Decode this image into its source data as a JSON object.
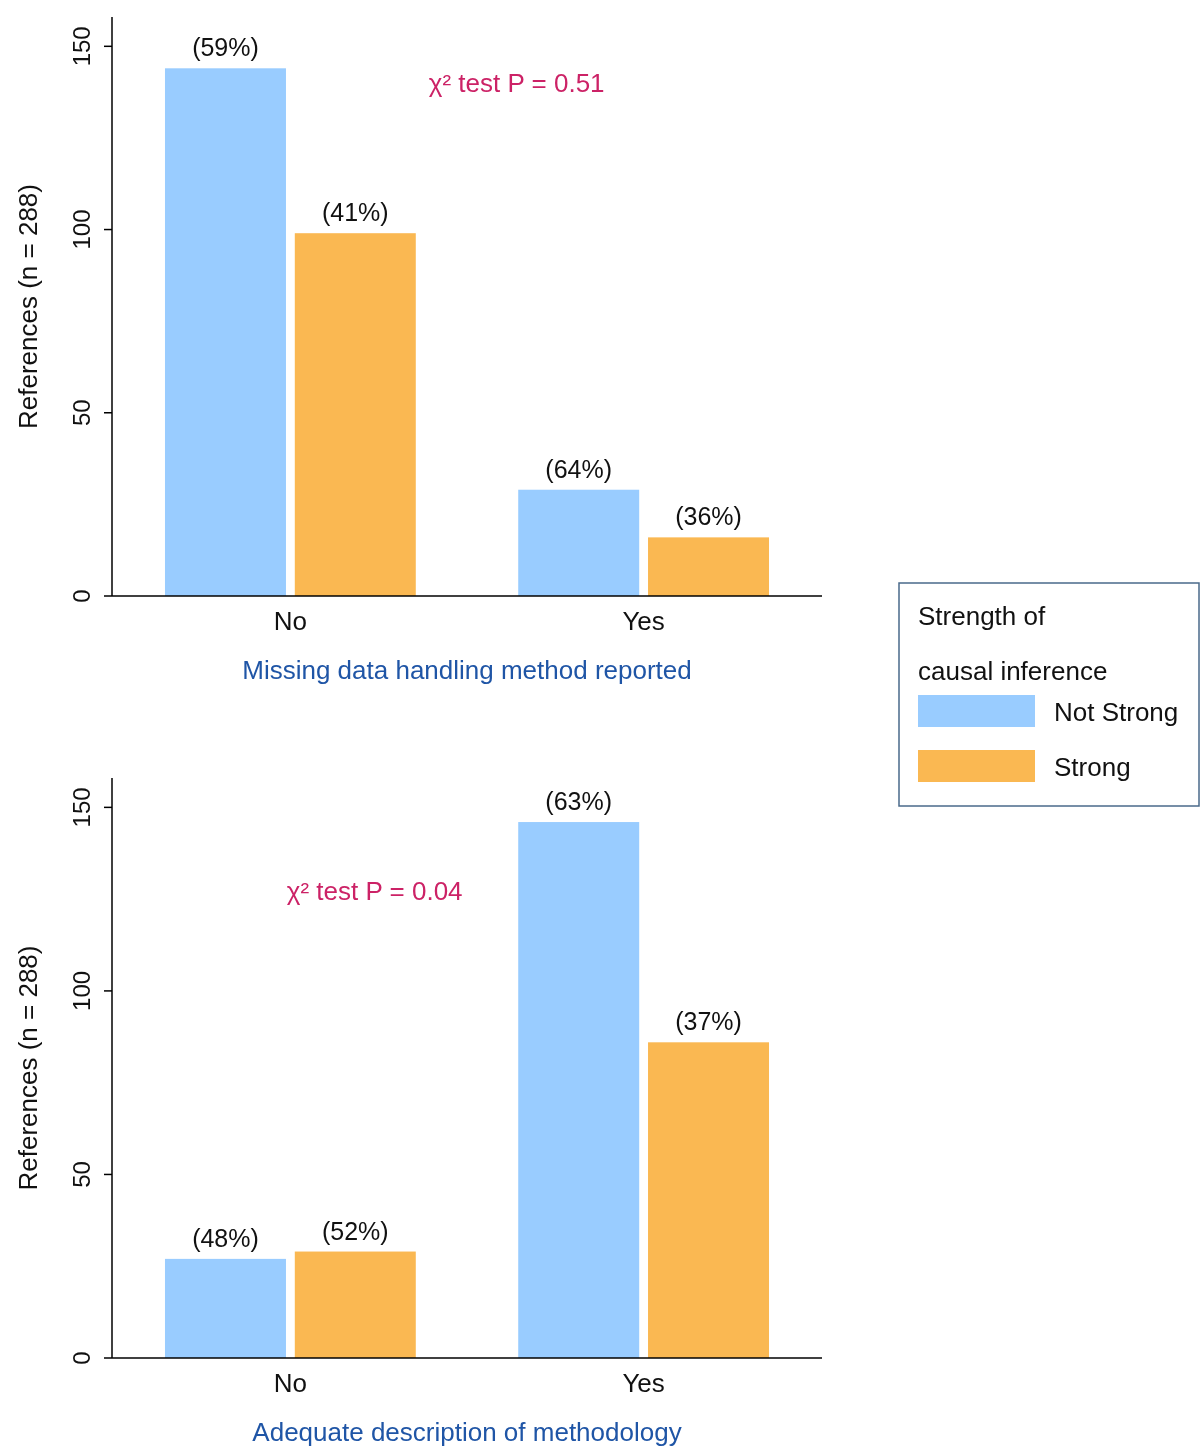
{
  "chart_data": [
    {
      "type": "bar",
      "xlabel": "Missing data handling method reported",
      "ylabel": "References (n = 288)",
      "categories": [
        "No",
        "Yes"
      ],
      "ylim": [
        0,
        158
      ],
      "yticks": [
        0,
        50,
        100,
        150
      ],
      "legend": "right",
      "legend_title": "Strength of causal inference",
      "grid": false,
      "annotations": [
        "χ² test P = 0.51",
        {
          "text": "(59%)",
          "x": "No",
          "y": 144
        },
        {
          "text": "(41%)",
          "x": "No",
          "y": 99
        },
        {
          "text": "(64%)",
          "x": "Yes",
          "y": 29
        },
        {
          "text": "(36%)",
          "x": "Yes",
          "y": 16
        }
      ],
      "series": [
        {
          "name": "Not Strong",
          "color": "#99ccff",
          "values": [
            144,
            29
          ]
        },
        {
          "name": "Strong",
          "color": "#fab852",
          "values": [
            99,
            16
          ]
        }
      ]
    },
    {
      "type": "bar",
      "xlabel": "Adequate description of methodology",
      "ylabel": "References (n = 288)",
      "categories": [
        "No",
        "Yes"
      ],
      "ylim": [
        0,
        158
      ],
      "yticks": [
        0,
        50,
        100,
        150
      ],
      "grid": false,
      "annotations": [
        "χ² test P = 0.04",
        {
          "text": "(48%)",
          "x": "No",
          "y": 27
        },
        {
          "text": "(52%)",
          "x": "No",
          "y": 29
        },
        {
          "text": "(63%)",
          "x": "Yes",
          "y": 146
        },
        {
          "text": "(37%)",
          "x": "Yes",
          "y": 86
        }
      ],
      "series": [
        {
          "color": "#99ccff",
          "values": [
            27,
            146
          ]
        },
        {
          "color": "#fab852",
          "values": [
            29,
            86
          ]
        }
      ]
    }
  ]
}
